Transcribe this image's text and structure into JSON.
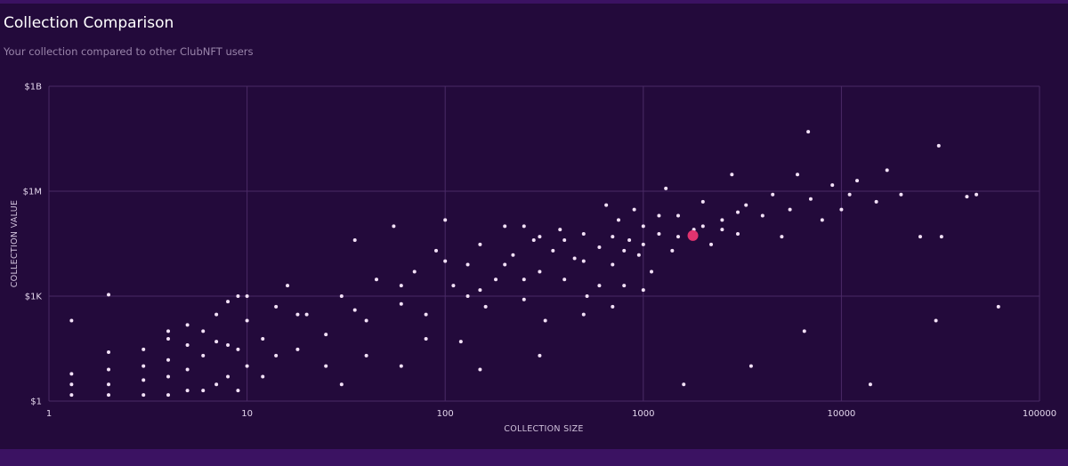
{
  "chart_data": {
    "type": "scatter",
    "title": "Collection Comparison",
    "subtitle": "Your collection compared to other ClubNFT users",
    "x_label": "COLLECTION SIZE",
    "y_label": "COLLECTION VALUE",
    "log_x": true,
    "log_y": true,
    "grid": true,
    "xlim": [
      1,
      100000
    ],
    "xticks": [
      1,
      10,
      100,
      1000,
      10000,
      100000
    ],
    "ylim": [
      1,
      1000000000
    ],
    "yticks": [
      {
        "value": 1,
        "label": "$1"
      },
      {
        "value": 1000,
        "label": "$1K"
      },
      {
        "value": 1000000,
        "label": "$1M"
      },
      {
        "value": 1000000000,
        "label": "$1B"
      }
    ],
    "color": "#f3e1f7",
    "highlight_color": "#e2336f",
    "points": {
      "x": [
        1.3,
        1.3,
        1.3,
        1.3,
        2,
        2,
        2,
        2,
        2,
        3,
        3,
        3,
        3,
        4,
        4,
        4,
        4,
        4,
        5,
        5,
        5,
        5,
        6,
        6,
        6,
        7,
        7,
        7,
        8,
        8,
        8,
        9,
        9,
        9,
        10,
        10,
        10,
        12,
        12,
        14,
        14,
        16,
        18,
        20,
        25,
        30,
        30,
        35,
        40,
        45,
        55,
        60,
        70,
        80,
        90,
        100,
        110,
        120,
        130,
        150,
        160,
        180,
        200,
        220,
        250,
        280,
        300,
        320,
        350,
        380,
        400,
        450,
        500,
        520,
        600,
        650,
        700,
        750,
        800,
        850,
        900,
        950,
        1000,
        1100,
        1200,
        1300,
        1400,
        1500,
        1600,
        1800,
        2000,
        2200,
        2500,
        2800,
        3000,
        3300,
        3500,
        4000,
        4500,
        5000,
        5500,
        6000,
        6500,
        6800,
        7000,
        8000,
        9000,
        10000,
        11000,
        12000,
        14000,
        15000,
        17000,
        20000,
        25000,
        30000,
        31000,
        32000,
        43000,
        48000,
        62000,
        150,
        200,
        250,
        300,
        400,
        500,
        600,
        700,
        800,
        1000,
        1200,
        1500,
        2000,
        2500,
        3000,
        40,
        60,
        80,
        25,
        18,
        150,
        300,
        500,
        700,
        1000,
        250,
        100,
        130,
        60,
        35
      ],
      "y": [
        1.5,
        3,
        6,
        200,
        1.5,
        3,
        8,
        25,
        1100,
        1.5,
        4,
        10,
        30,
        1.5,
        5,
        15,
        60,
        100,
        2,
        8,
        40,
        150,
        2,
        20,
        100,
        3,
        50,
        300,
        5,
        40,
        700,
        2,
        30,
        1000,
        10,
        200,
        1000,
        5,
        60,
        20,
        500,
        2000,
        30,
        300,
        80,
        1000,
        3,
        40000,
        200,
        3000,
        100000,
        10,
        5000,
        300,
        20000,
        150000,
        2000,
        50,
        8000,
        30000,
        500,
        3000,
        100000,
        15000,
        800,
        40000,
        5000,
        200,
        20000,
        80000,
        3000,
        12000,
        60000,
        1000,
        25000,
        400000,
        8000,
        150000,
        2000,
        40000,
        300000,
        15000,
        100000,
        5000,
        60000,
        1200000,
        20000,
        200000,
        3,
        80000,
        500000,
        30000,
        150000,
        3000000,
        60000,
        400000,
        10,
        200000,
        800000,
        50000,
        300000,
        3000000,
        100,
        50000000,
        600000,
        150000,
        1500000,
        300000,
        800000,
        2000000,
        3,
        500000,
        4000000,
        800000,
        50000,
        200,
        20000000,
        50000,
        700000,
        800000,
        500,
        1500,
        8000,
        3000,
        50000,
        40000,
        10000,
        2000,
        50000,
        20000,
        30000,
        200000,
        50000,
        100000,
        80000,
        250000,
        20,
        600,
        60,
        10,
        300,
        8,
        20,
        300,
        500,
        1500,
        100000,
        10000,
        1000,
        2000,
        400
      ]
    },
    "highlight": {
      "x": 1780,
      "y": 54000
    }
  }
}
